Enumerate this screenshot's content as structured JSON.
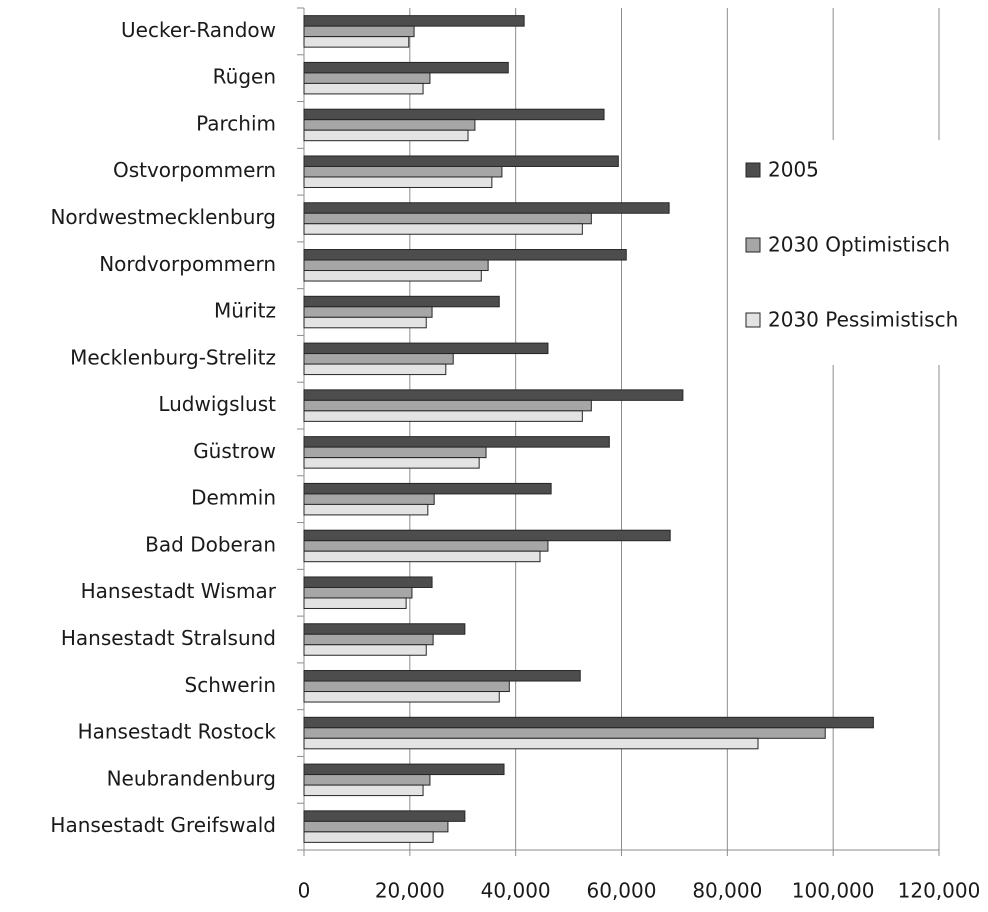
{
  "chart_data": {
    "type": "bar",
    "orientation": "horizontal",
    "categories": [
      "Uecker-Randow",
      "Rügen",
      "Parchim",
      "Ostvorpommern",
      "Nordwestmecklenburg",
      "Nordvorpommern",
      "Müritz",
      "Mecklenburg-Strelitz",
      "Ludwigslust",
      "Güstrow",
      "Demmin",
      "Bad Doberan",
      "Hansestadt Wismar",
      "Hansestadt Stralsund",
      "Schwerin",
      "Hansestadt Rostock",
      "Neubrandenburg",
      "Hansestadt Greifswald"
    ],
    "series": [
      {
        "name": "2005",
        "color": "#4d4d4d",
        "values": [
          41600,
          38600,
          56700,
          59400,
          69000,
          60900,
          36900,
          46100,
          71600,
          57700,
          46700,
          69200,
          24200,
          30400,
          52200,
          107600,
          37800,
          30400
        ]
      },
      {
        "name": "2030 Optimistisch",
        "color": "#a6a6a6",
        "values": [
          20800,
          23800,
          32300,
          37400,
          54300,
          34800,
          24200,
          28200,
          54300,
          34400,
          24600,
          46100,
          20400,
          24400,
          38800,
          98500,
          23800,
          27200
        ]
      },
      {
        "name": "2030 Pessimistisch",
        "color": "#e3e3e3",
        "values": [
          19800,
          22500,
          31000,
          35500,
          52600,
          33500,
          23100,
          26800,
          52600,
          33100,
          23400,
          44600,
          19300,
          23100,
          36900,
          85800,
          22500,
          24400
        ]
      }
    ],
    "xlim": [
      0,
      120000
    ],
    "xticks": [
      0,
      {
        "value": 20000,
        "label": "20,000"
      },
      {
        "value": 40000,
        "label": "40,000"
      },
      {
        "value": 60000,
        "label": "60,000"
      },
      {
        "value": 80000,
        "label": "80,000"
      },
      {
        "value": 100000,
        "label": "100,000"
      },
      {
        "value": 120000,
        "label": "120,000"
      }
    ],
    "grid": true,
    "legend": "right"
  }
}
